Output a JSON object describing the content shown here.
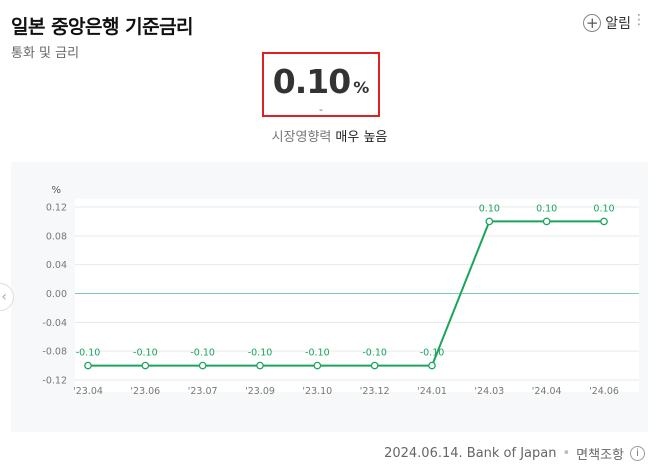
{
  "header": {
    "title": "일본 중앙은행 기준금리",
    "subtitle": "통화 및 금리",
    "alarm_label": "알림",
    "plus_glyph": "+",
    "more_glyph": "⋮"
  },
  "rate": {
    "value": "0.10",
    "unit": "%",
    "change": "-",
    "pressure_label": "시장영향력",
    "pressure_level": "매우 높음"
  },
  "chart_data": {
    "type": "line",
    "ylabel": "%",
    "ylim": [
      -0.12,
      0.12
    ],
    "yticks": [
      "0.12",
      "0.08",
      "0.04",
      "0.00",
      "-0.04",
      "-0.08",
      "-0.12"
    ],
    "categories": [
      "'23.04",
      "'23.06",
      "'23.07",
      "'23.09",
      "'23.10",
      "'23.12",
      "'24.01",
      "'24.03",
      "'24.04",
      "'24.06"
    ],
    "values": [
      -0.1,
      -0.1,
      -0.1,
      -0.1,
      -0.1,
      -0.1,
      -0.1,
      0.1,
      0.1,
      0.1
    ],
    "data_labels": [
      "-0.10",
      "-0.10",
      "-0.10",
      "-0.10",
      "-0.10",
      "-0.10",
      "-0.10",
      "0.10",
      "0.10",
      "0.10"
    ],
    "line_color": "#1aa55a",
    "zero_line_color": "#7fcfa6",
    "grid": true
  },
  "footer": {
    "source": "2024.06.14. Bank of Japan",
    "disclaimer": "면책조항",
    "info_glyph": "i"
  },
  "nav": {
    "prev_glyph": "‹"
  }
}
